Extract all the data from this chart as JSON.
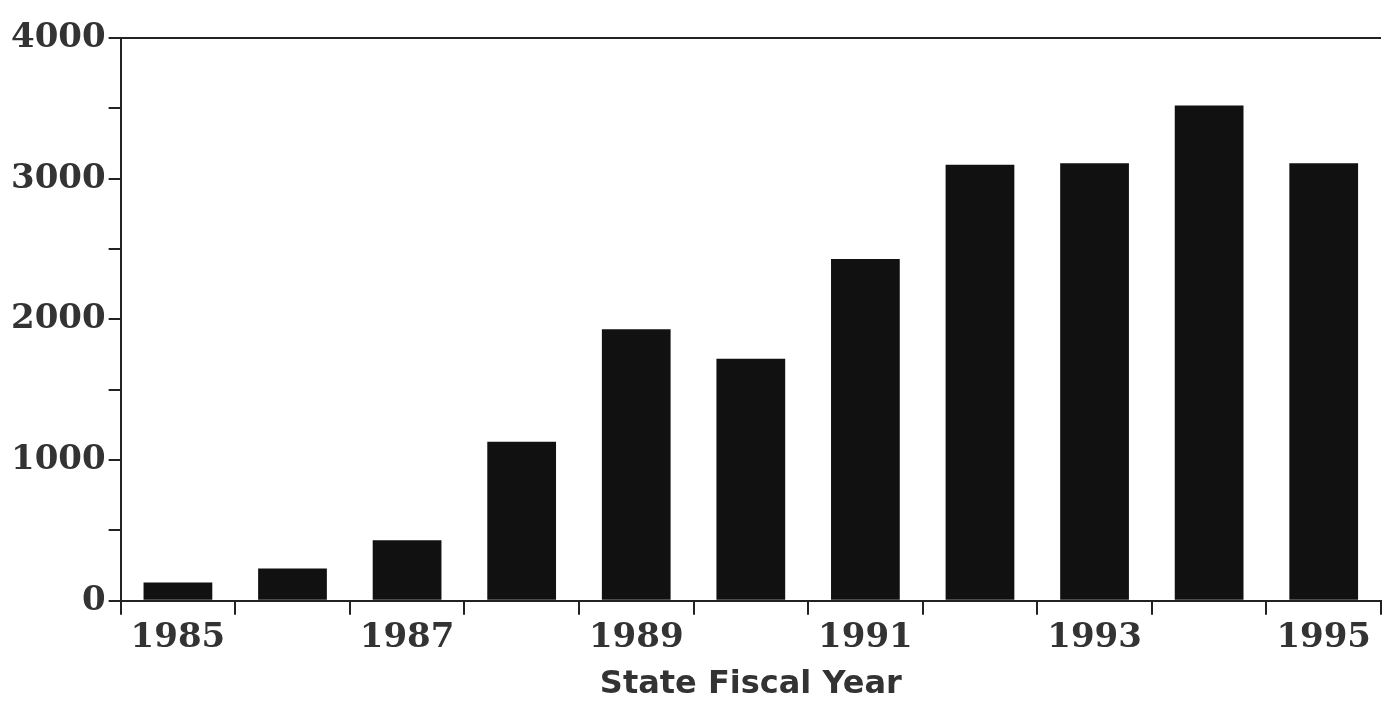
{
  "chart_data": {
    "type": "bar",
    "xlabel": "State Fiscal Year",
    "categories": [
      "1985",
      null,
      "1987",
      null,
      "1989",
      null,
      "1991",
      null,
      "1993",
      null,
      "1995"
    ],
    "values": [
      130,
      230,
      430,
      1130,
      1930,
      1720,
      2430,
      3100,
      3110,
      3520,
      3110
    ],
    "color": "#111111",
    "ylim": [
      0,
      4000
    ],
    "yticks": [
      0,
      {
        "value": 500,
        "label": null
      },
      1000,
      {
        "value": 1500,
        "label": null
      },
      2000,
      {
        "value": 2500,
        "label": null
      },
      3000,
      {
        "value": 3500,
        "label": null
      },
      4000
    ],
    "grid": false,
    "legend": false
  }
}
